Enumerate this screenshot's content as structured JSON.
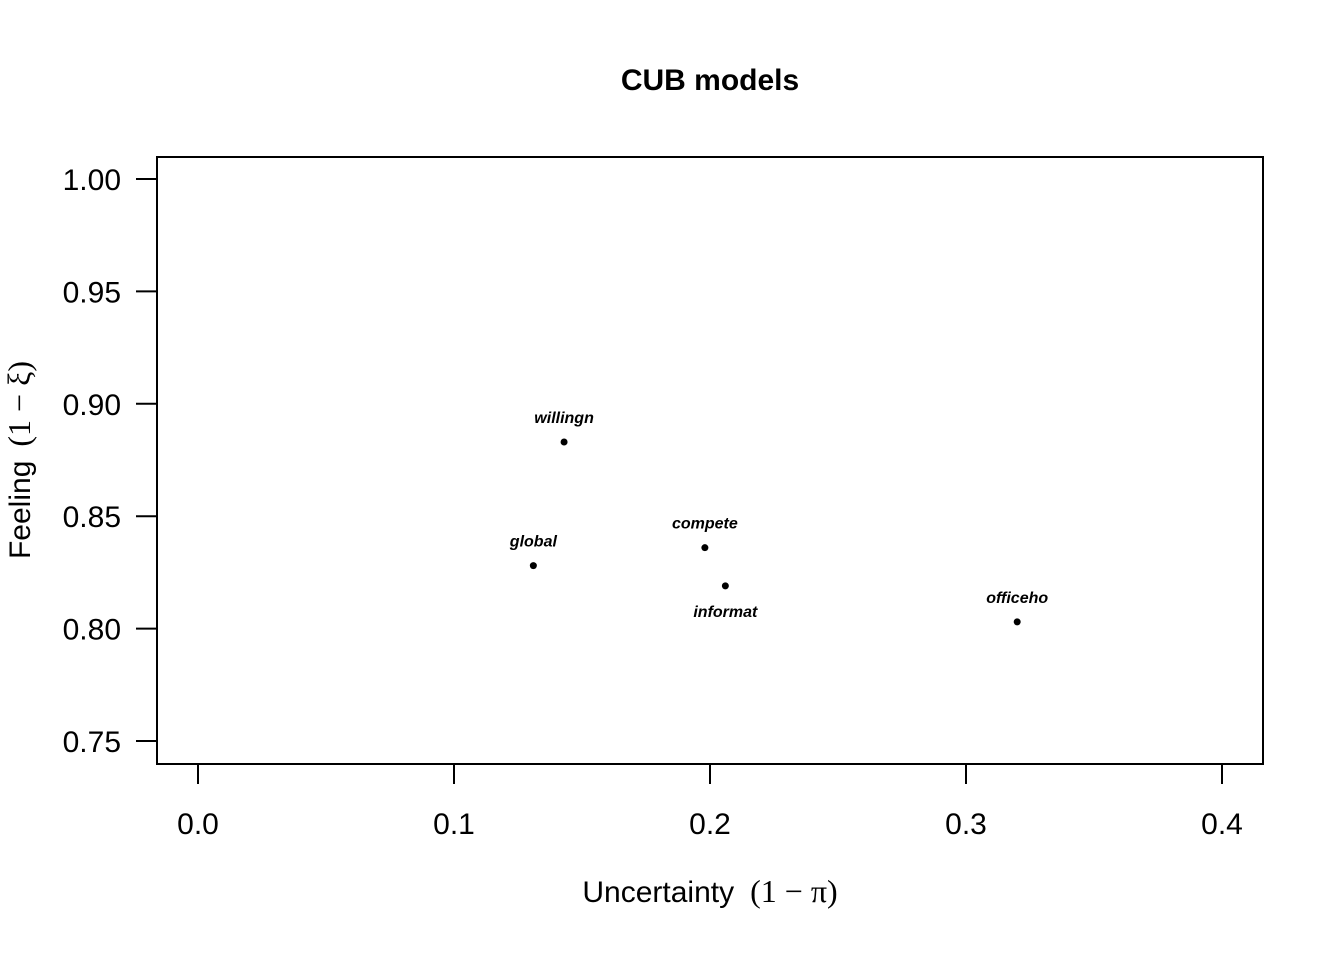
{
  "chart_data": {
    "type": "scatter",
    "title": "CUB models",
    "xlabel": "Uncertainty",
    "xlabel_math": "(1 − π)",
    "ylabel": "Feeling",
    "ylabel_math": "(1 − ξ)",
    "xlim": [
      0.0,
      0.4
    ],
    "ylim": [
      0.75,
      1.0
    ],
    "xticks": [
      0.0,
      0.1,
      0.2,
      0.3,
      0.4
    ],
    "xtick_labels": [
      "0.0",
      "0.1",
      "0.2",
      "0.3",
      "0.4"
    ],
    "yticks": [
      0.75,
      0.8,
      0.85,
      0.9,
      0.95,
      1.0
    ],
    "ytick_labels": [
      "0.75",
      "0.80",
      "0.85",
      "0.90",
      "0.95",
      "1.00"
    ],
    "grid": false,
    "points": [
      {
        "label": "willingn",
        "x": 0.143,
        "y": 0.883,
        "label_pos": "above"
      },
      {
        "label": "global",
        "x": 0.131,
        "y": 0.828,
        "label_pos": "above"
      },
      {
        "label": "compete",
        "x": 0.198,
        "y": 0.836,
        "label_pos": "above"
      },
      {
        "label": "informat",
        "x": 0.206,
        "y": 0.819,
        "label_pos": "below"
      },
      {
        "label": "officeho",
        "x": 0.32,
        "y": 0.803,
        "label_pos": "above"
      }
    ]
  }
}
